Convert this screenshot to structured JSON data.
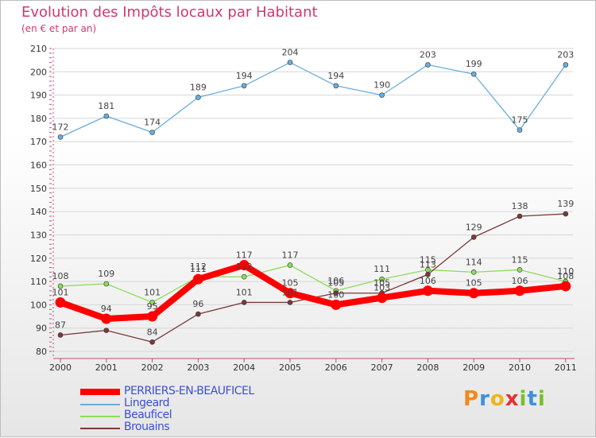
{
  "title": "Evolution des Impôts locaux par Habitant",
  "subtitle": "(en € et par an)",
  "logo": {
    "letters": [
      "P",
      "r",
      "o",
      "x",
      "i",
      "t",
      "i"
    ],
    "colors": [
      "#f08a1c",
      "#3d8fe0",
      "#f0b41c",
      "#e83030",
      "#7bbf2a",
      "#3d8fe0",
      "#7bbf2a"
    ]
  },
  "chart_data": {
    "type": "line",
    "title": "Evolution des Impôts locaux par Habitant",
    "ylabel": "(en € et par an)",
    "categories": [
      "2000",
      "2001",
      "2002",
      "2003",
      "2004",
      "2005",
      "2006",
      "2007",
      "2008",
      "2009",
      "2010",
      "2011"
    ],
    "ylim": [
      80,
      210
    ],
    "yticks": [
      "80",
      "90",
      "100",
      "110",
      "120",
      "130",
      "140",
      "150",
      "160",
      "170",
      "180",
      "190",
      "200",
      "210"
    ],
    "series": [
      {
        "name": "PERRIERS-EN-BEAUFICEL",
        "color": "#ff0000",
        "values": [
          101,
          94,
          95,
          111,
          117,
          105,
          100,
          103,
          106,
          105,
          106,
          108
        ],
        "labels": [
          "101",
          "94",
          "95",
          "111",
          "117",
          "105",
          "100",
          "103",
          "106",
          "105",
          "106",
          "108"
        ]
      },
      {
        "name": "Lingeard",
        "color": "#6aaddc",
        "values": [
          172,
          181,
          174,
          189,
          194,
          204,
          194,
          190,
          203,
          199,
          175,
          203
        ],
        "labels": [
          "172",
          "181",
          "174",
          "189",
          "194",
          "204",
          "194",
          "190",
          "203",
          "199",
          "175",
          "203"
        ]
      },
      {
        "name": "Beauficel",
        "color": "#8edc5a",
        "values": [
          108,
          109,
          101,
          112,
          112,
          117,
          106,
          111,
          115,
          114,
          115,
          110
        ],
        "labels": [
          "108",
          "109",
          "101",
          "112",
          "112",
          "117",
          "106",
          "111",
          "115",
          "114",
          "115",
          "110"
        ]
      },
      {
        "name": "Brouains",
        "color": "#7a3a3a",
        "values": [
          87,
          89,
          84,
          96,
          101,
          101,
          105,
          105,
          113,
          129,
          138,
          139
        ],
        "labels": [
          "87",
          "",
          "84",
          "96",
          "101",
          "101",
          "105",
          "105",
          "113",
          "129",
          "138",
          "139"
        ]
      }
    ]
  },
  "legend": [
    {
      "label": "PERRIERS-EN-BEAUFICEL",
      "color": "#ff0000"
    },
    {
      "label": "Lingeard",
      "color": "#6aaddc"
    },
    {
      "label": "Beauficel",
      "color": "#8edc5a"
    },
    {
      "label": "Brouains",
      "color": "#7a3a3a"
    }
  ]
}
